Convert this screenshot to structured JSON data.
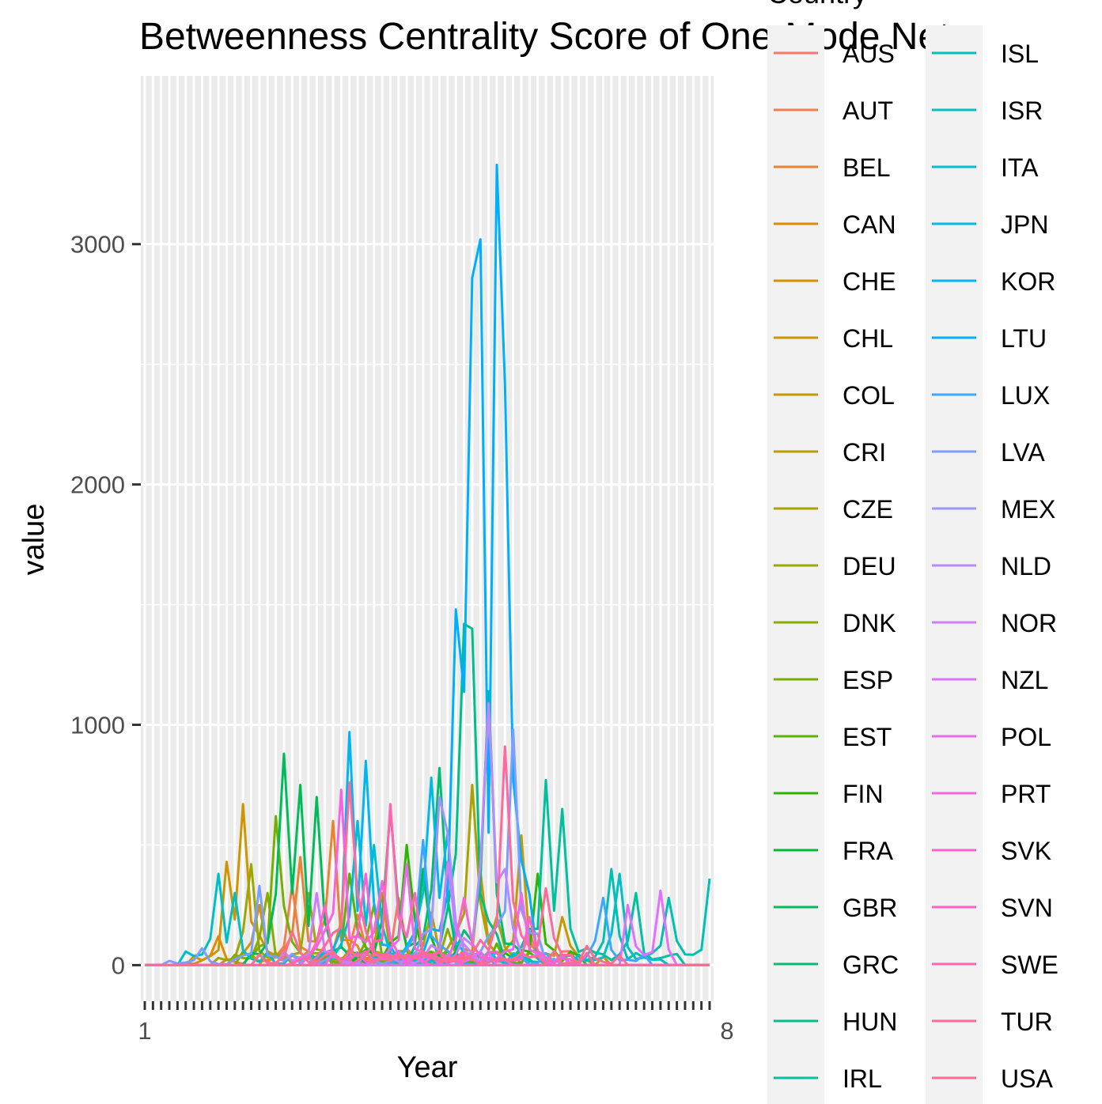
{
  "chart_data": {
    "type": "line",
    "title": "Betweenness Centrality Score of One-Mode Netw",
    "xlabel": "Year",
    "ylabel": "value",
    "x_first_tick_label": "1",
    "x_last_tick_label": "8",
    "x_range": [
      1,
      70
    ],
    "y_ticks": [
      0,
      1000,
      2000,
      3000
    ],
    "y_tick_labels": [
      "0",
      "1000",
      "2000",
      "3000"
    ],
    "ylim": [
      -150,
      3700
    ],
    "grid": true,
    "background": "#ebebeb",
    "legend": {
      "title": "Country",
      "placement": "right",
      "columns": 2,
      "background": "#f2f2f2"
    },
    "series": [
      {
        "name": "AUS",
        "color": "#F8766D",
        "peaks": [
          [
            32,
            280
          ],
          [
            48,
            140
          ]
        ]
      },
      {
        "name": "AUT",
        "color": "#F17D51",
        "peaks": [
          [
            19,
            330
          ],
          [
            27,
            210
          ]
        ]
      },
      {
        "name": "BEL",
        "color": "#EA8331",
        "peaks": [
          [
            20,
            450
          ],
          [
            24,
            600
          ]
        ]
      },
      {
        "name": "CAN",
        "color": "#E18A00",
        "peaks": [
          [
            10,
            120
          ],
          [
            25,
            180
          ]
        ]
      },
      {
        "name": "CHE",
        "color": "#D89000",
        "peaks": [
          [
            15,
            250
          ],
          [
            42,
            390
          ]
        ]
      },
      {
        "name": "CHL",
        "color": "#CE9500",
        "peaks": [
          [
            11,
            430
          ],
          [
            13,
            670
          ]
        ]
      },
      {
        "name": "COL",
        "color": "#C49A00",
        "peaks": [
          [
            47,
            540
          ],
          [
            52,
            200
          ]
        ]
      },
      {
        "name": "CRI",
        "color": "#B89E00",
        "peaks": [
          [
            30,
            300
          ],
          [
            36,
            220
          ]
        ]
      },
      {
        "name": "CZE",
        "color": "#AAA200",
        "peaks": [
          [
            41,
            750
          ],
          [
            44,
            200
          ]
        ]
      },
      {
        "name": "DEU",
        "color": "#9CA700",
        "peaks": [
          [
            14,
            420
          ],
          [
            21,
            300
          ]
        ]
      },
      {
        "name": "DNK",
        "color": "#8BAB00",
        "peaks": [
          [
            16,
            300
          ],
          [
            38,
            150
          ]
        ]
      },
      {
        "name": "ESP",
        "color": "#77AF00",
        "peaks": [
          [
            17,
            620
          ],
          [
            29,
            250
          ]
        ]
      },
      {
        "name": "EST",
        "color": "#5BB300",
        "peaks": [
          [
            26,
            380
          ],
          [
            44,
            90
          ]
        ]
      },
      {
        "name": "FIN",
        "color": "#2DB600",
        "peaks": [
          [
            33,
            500
          ],
          [
            49,
            380
          ]
        ]
      },
      {
        "name": "FRA",
        "color": "#00B935",
        "peaks": [
          [
            31,
            650
          ],
          [
            35,
            400
          ]
        ]
      },
      {
        "name": "GBR",
        "color": "#00BB59",
        "peaks": [
          [
            18,
            880
          ],
          [
            20,
            750
          ],
          [
            22,
            700
          ]
        ]
      },
      {
        "name": "GRC",
        "color": "#00BD73",
        "peaks": [
          [
            37,
            820
          ],
          [
            43,
            1140
          ]
        ]
      },
      {
        "name": "HUN",
        "color": "#00BE8A",
        "peaks": [
          [
            40,
            1420
          ],
          [
            41,
            1400
          ]
        ]
      },
      {
        "name": "IRL",
        "color": "#00C09E",
        "peaks": [
          [
            50,
            770
          ],
          [
            52,
            650
          ],
          [
            61,
            300
          ]
        ]
      },
      {
        "name": "ISL",
        "color": "#00C0B1",
        "peaks": [
          [
            58,
            400
          ],
          [
            65,
            280
          ],
          [
            70,
            360
          ]
        ]
      },
      {
        "name": "ISR",
        "color": "#00BFC4",
        "peaks": [
          [
            10,
            380
          ],
          [
            12,
            300
          ],
          [
            59,
            380
          ]
        ]
      },
      {
        "name": "ITA",
        "color": "#00BDD4",
        "peaks": [
          [
            27,
            600
          ],
          [
            29,
            500
          ]
        ]
      },
      {
        "name": "JPN",
        "color": "#00BAE3",
        "peaks": [
          [
            36,
            780
          ],
          [
            38,
            550
          ]
        ]
      },
      {
        "name": "KOR",
        "color": "#00B5F0",
        "peaks": [
          [
            26,
            970
          ],
          [
            28,
            850
          ]
        ]
      },
      {
        "name": "LTU",
        "color": "#00AFFC",
        "peaks": [
          [
            39,
            1480
          ],
          [
            41,
            2860
          ],
          [
            42,
            3020
          ],
          [
            44,
            3330
          ],
          [
            45,
            2420
          ]
        ]
      },
      {
        "name": "LUX",
        "color": "#3DA7FF",
        "peaks": [
          [
            35,
            520
          ],
          [
            57,
            280
          ]
        ]
      },
      {
        "name": "LVA",
        "color": "#7C9EFF",
        "peaks": [
          [
            8,
            70
          ],
          [
            15,
            330
          ],
          [
            46,
            980
          ]
        ]
      },
      {
        "name": "MEX",
        "color": "#A093FF",
        "peaks": [
          [
            37,
            700
          ],
          [
            38,
            550
          ]
        ]
      },
      {
        "name": "NLD",
        "color": "#BB88FF",
        "peaks": [
          [
            43,
            1090
          ],
          [
            45,
            400
          ]
        ]
      },
      {
        "name": "NOR",
        "color": "#CF7CFF",
        "peaks": [
          [
            22,
            300
          ],
          [
            38,
            430
          ]
        ]
      },
      {
        "name": "NZL",
        "color": "#E070FF",
        "peaks": [
          [
            64,
            310
          ],
          [
            60,
            250
          ]
        ]
      },
      {
        "name": "POL",
        "color": "#EC69EF",
        "peaks": [
          [
            33,
            420
          ],
          [
            47,
            300
          ]
        ]
      },
      {
        "name": "PRT",
        "color": "#F564E3",
        "peaks": [
          [
            25,
            730
          ],
          [
            30,
            350
          ]
        ]
      },
      {
        "name": "SVK",
        "color": "#FC61D4",
        "peaks": [
          [
            28,
            380
          ],
          [
            40,
            280
          ]
        ]
      },
      {
        "name": "SVN",
        "color": "#FF62C3",
        "peaks": [
          [
            23,
            250
          ],
          [
            48,
            200
          ]
        ]
      },
      {
        "name": "SWE",
        "color": "#FF65B1",
        "peaks": [
          [
            31,
            670
          ],
          [
            34,
            300
          ]
        ]
      },
      {
        "name": "TUR",
        "color": "#FF699C",
        "peaks": [
          [
            26,
            760
          ],
          [
            45,
            910
          ],
          [
            50,
            320
          ]
        ]
      },
      {
        "name": "USA",
        "color": "#FF6C91",
        "peaks": [
          [
            19,
            140
          ],
          [
            55,
            80
          ]
        ]
      }
    ]
  }
}
